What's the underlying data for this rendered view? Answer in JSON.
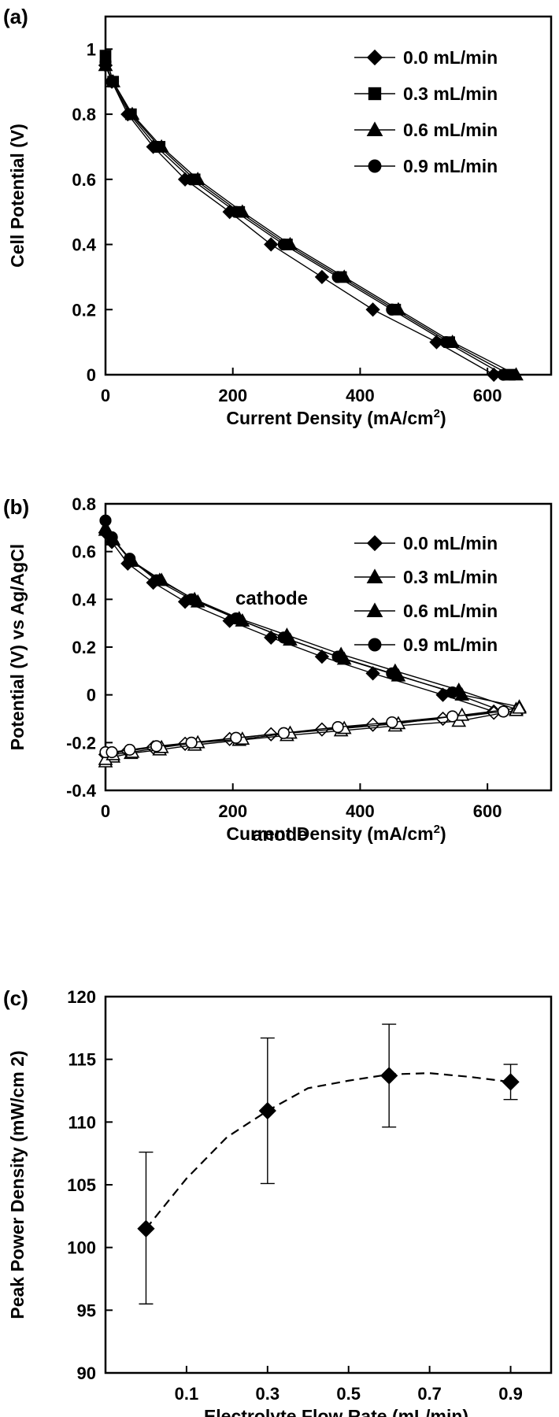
{
  "chart_data": [
    {
      "panel": "(a)",
      "type": "line",
      "xlabel": "Current Density (mA/cm2)",
      "ylabel": "Cell Potential (V)",
      "xlim": [
        0,
        700
      ],
      "ylim": [
        0,
        1.1
      ],
      "xticks": [
        0,
        200,
        400,
        600
      ],
      "yticks": [
        0,
        0.2,
        0.4,
        0.6,
        0.8,
        1
      ],
      "legend_position": "top-right",
      "series": [
        {
          "name": "0.0 mL/min",
          "marker": "diamond",
          "filled": true,
          "x": [
            0,
            10,
            35,
            75,
            125,
            195,
            260,
            340,
            420,
            520,
            610
          ],
          "y": [
            0.95,
            0.9,
            0.8,
            0.7,
            0.6,
            0.5,
            0.4,
            0.3,
            0.2,
            0.1,
            0.0
          ]
        },
        {
          "name": "0.3 mL/min",
          "marker": "square",
          "filled": true,
          "x": [
            0,
            12,
            40,
            85,
            140,
            210,
            285,
            370,
            455,
            540,
            635
          ],
          "y": [
            0.98,
            0.9,
            0.8,
            0.7,
            0.6,
            0.5,
            0.4,
            0.3,
            0.2,
            0.1,
            0.0
          ]
        },
        {
          "name": "0.6 mL/min",
          "marker": "triangle",
          "filled": true,
          "x": [
            0,
            12,
            42,
            88,
            145,
            215,
            290,
            375,
            460,
            545,
            645
          ],
          "y": [
            0.95,
            0.9,
            0.8,
            0.7,
            0.6,
            0.5,
            0.4,
            0.3,
            0.2,
            0.1,
            0.0
          ]
        },
        {
          "name": "0.9 mL/min",
          "marker": "circle",
          "filled": true,
          "x": [
            0,
            10,
            38,
            80,
            135,
            205,
            280,
            365,
            450,
            535,
            625
          ],
          "y": [
            0.96,
            0.9,
            0.8,
            0.7,
            0.6,
            0.5,
            0.4,
            0.3,
            0.2,
            0.1,
            0.0
          ]
        }
      ]
    },
    {
      "panel": "(b)",
      "type": "line",
      "xlabel": "Current Density (mA/cm2)",
      "ylabel": "Potential (V) vs Ag/AgCl",
      "xlim": [
        0,
        700
      ],
      "ylim": [
        -0.4,
        0.8
      ],
      "xticks": [
        0,
        200,
        400,
        600
      ],
      "yticks": [
        -0.4,
        -0.2,
        0,
        0.2,
        0.4,
        0.6,
        0.8
      ],
      "legend_position": "top-right",
      "annotations": [
        "cathode",
        "anode"
      ],
      "series": [
        {
          "name": "0.0 mL/min",
          "marker": "diamond",
          "filled": true,
          "x": [
            0,
            10,
            35,
            75,
            125,
            195,
            260,
            340,
            420,
            530,
            610
          ],
          "y": [
            0.68,
            0.64,
            0.55,
            0.47,
            0.39,
            0.31,
            0.24,
            0.16,
            0.09,
            0.0,
            -0.07
          ]
        },
        {
          "name": "0.3 mL/min",
          "marker": "triangle",
          "filled": true,
          "x": [
            0,
            12,
            40,
            85,
            140,
            210,
            285,
            370,
            455,
            555,
            645
          ],
          "y": [
            0.7,
            0.65,
            0.56,
            0.48,
            0.4,
            0.32,
            0.25,
            0.17,
            0.1,
            0.02,
            -0.06
          ]
        },
        {
          "name": "0.6 mL/min",
          "marker": "triangle",
          "filled": true,
          "x": [
            0,
            12,
            42,
            88,
            145,
            215,
            290,
            375,
            460,
            560,
            650
          ],
          "y": [
            0.69,
            0.65,
            0.56,
            0.48,
            0.39,
            0.31,
            0.23,
            0.15,
            0.08,
            0.0,
            -0.05
          ]
        },
        {
          "name": "0.9 mL/min",
          "marker": "circle",
          "filled": true,
          "x": [
            0,
            10,
            38,
            80,
            135,
            205,
            280,
            365,
            450,
            545,
            625
          ],
          "y": [
            0.73,
            0.66,
            0.57,
            0.48,
            0.4,
            0.32,
            0.24,
            0.16,
            0.09,
            0.01,
            -0.07
          ]
        },
        {
          "name": "anode 0.0 mL/min",
          "marker": "diamond",
          "filled": false,
          "x": [
            0,
            10,
            35,
            75,
            125,
            195,
            260,
            340,
            420,
            530,
            610
          ],
          "y": [
            -0.25,
            -0.245,
            -0.235,
            -0.22,
            -0.205,
            -0.185,
            -0.165,
            -0.145,
            -0.125,
            -0.1,
            -0.075
          ]
        },
        {
          "name": "anode 0.3 mL/min",
          "marker": "triangle",
          "filled": false,
          "x": [
            0,
            12,
            40,
            85,
            140,
            210,
            285,
            370,
            455,
            555,
            645
          ],
          "y": [
            -0.28,
            -0.26,
            -0.245,
            -0.23,
            -0.21,
            -0.19,
            -0.17,
            -0.15,
            -0.13,
            -0.11,
            -0.065
          ]
        },
        {
          "name": "anode 0.6 mL/min",
          "marker": "triangle",
          "filled": false,
          "x": [
            0,
            12,
            42,
            88,
            145,
            215,
            290,
            375,
            460,
            560,
            650
          ],
          "y": [
            -0.27,
            -0.25,
            -0.24,
            -0.22,
            -0.2,
            -0.185,
            -0.16,
            -0.14,
            -0.12,
            -0.085,
            -0.055
          ]
        },
        {
          "name": "anode 0.9 mL/min",
          "marker": "circle",
          "filled": false,
          "x": [
            0,
            10,
            38,
            80,
            135,
            205,
            280,
            365,
            450,
            545,
            625
          ],
          "y": [
            -0.24,
            -0.24,
            -0.23,
            -0.215,
            -0.2,
            -0.18,
            -0.16,
            -0.135,
            -0.115,
            -0.09,
            -0.07
          ]
        }
      ]
    },
    {
      "panel": "(c)",
      "type": "scatter",
      "xlabel": "Electrolyte Flow Rate (mL/min)",
      "ylabel": "Peak Power Density (mW/cm 2)",
      "xlim": [
        -0.1,
        1.0
      ],
      "ylim": [
        90,
        120
      ],
      "xticks": [
        0.1,
        0.3,
        0.5,
        0.7,
        0.9
      ],
      "yticks": [
        90,
        95,
        100,
        105,
        110,
        115,
        120
      ],
      "series": [
        {
          "name": "",
          "marker": "diamond",
          "filled": true,
          "x": [
            0.0,
            0.3,
            0.6,
            0.9
          ],
          "y": [
            101.5,
            110.9,
            113.7,
            113.2
          ],
          "err_low": [
            95.5,
            105.1,
            109.6,
            111.8
          ],
          "err_high": [
            107.6,
            116.7,
            117.8,
            114.6
          ]
        }
      ],
      "trend": {
        "style": "dashed",
        "x": [
          0.0,
          0.1,
          0.2,
          0.3,
          0.4,
          0.5,
          0.6,
          0.7,
          0.8,
          0.9
        ],
        "y": [
          101.5,
          105.5,
          108.8,
          110.9,
          112.7,
          113.3,
          113.8,
          113.9,
          113.6,
          113.2
        ]
      }
    }
  ]
}
